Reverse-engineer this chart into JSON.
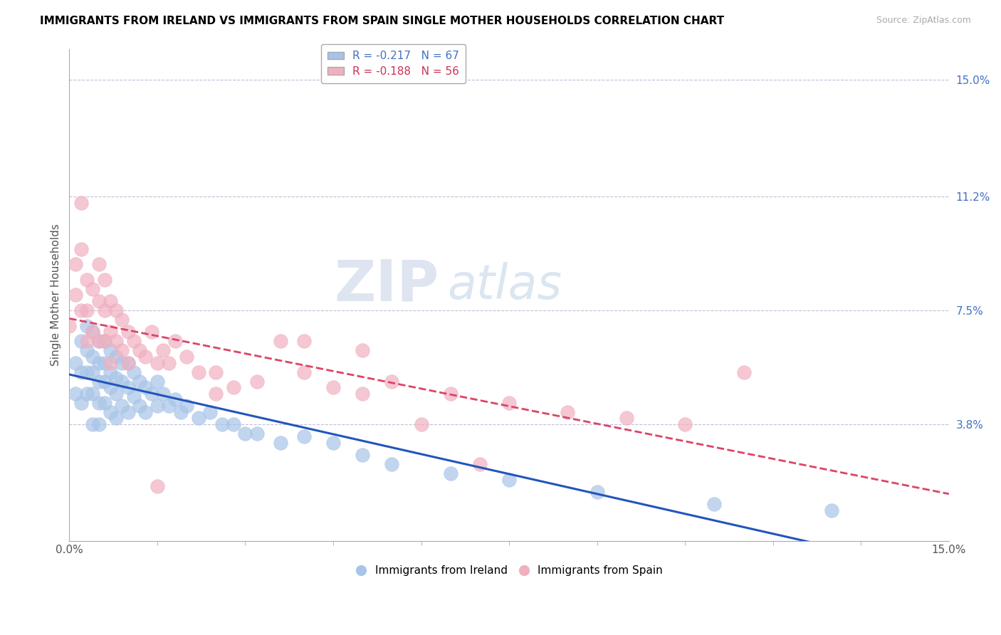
{
  "title": "IMMIGRANTS FROM IRELAND VS IMMIGRANTS FROM SPAIN SINGLE MOTHER HOUSEHOLDS CORRELATION CHART",
  "source": "Source: ZipAtlas.com",
  "ylabel": "Single Mother Households",
  "xlim": [
    0.0,
    0.15
  ],
  "ylim": [
    0.0,
    0.16
  ],
  "x_ticks": [
    0.0,
    0.15
  ],
  "x_tick_labels": [
    "0.0%",
    "15.0%"
  ],
  "y_tick_labels_right": [
    "15.0%",
    "11.2%",
    "7.5%",
    "3.8%"
  ],
  "y_tick_vals_right": [
    0.15,
    0.112,
    0.075,
    0.038
  ],
  "ireland_color": "#a8c4e8",
  "spain_color": "#f0b0c0",
  "ireland_line_color": "#2255bb",
  "spain_line_color": "#dd4466",
  "legend_ireland_label": "R = -0.217   N = 67",
  "legend_spain_label": "R = -0.188   N = 56",
  "legend_bottom_ireland": "Immigrants from Ireland",
  "legend_bottom_spain": "Immigrants from Spain",
  "watermark_zip": "ZIP",
  "watermark_atlas": "atlas",
  "ireland_scatter_x": [
    0.001,
    0.001,
    0.002,
    0.002,
    0.002,
    0.003,
    0.003,
    0.003,
    0.003,
    0.004,
    0.004,
    0.004,
    0.004,
    0.004,
    0.005,
    0.005,
    0.005,
    0.005,
    0.005,
    0.006,
    0.006,
    0.006,
    0.006,
    0.007,
    0.007,
    0.007,
    0.007,
    0.008,
    0.008,
    0.008,
    0.008,
    0.009,
    0.009,
    0.009,
    0.01,
    0.01,
    0.01,
    0.011,
    0.011,
    0.012,
    0.012,
    0.013,
    0.013,
    0.014,
    0.015,
    0.015,
    0.016,
    0.017,
    0.018,
    0.019,
    0.02,
    0.022,
    0.024,
    0.026,
    0.028,
    0.03,
    0.032,
    0.036,
    0.04,
    0.045,
    0.05,
    0.055,
    0.065,
    0.075,
    0.09,
    0.11,
    0.13
  ],
  "ireland_scatter_y": [
    0.058,
    0.048,
    0.065,
    0.055,
    0.045,
    0.07,
    0.062,
    0.055,
    0.048,
    0.068,
    0.06,
    0.055,
    0.048,
    0.038,
    0.065,
    0.058,
    0.052,
    0.045,
    0.038,
    0.065,
    0.058,
    0.052,
    0.045,
    0.062,
    0.055,
    0.05,
    0.042,
    0.06,
    0.053,
    0.048,
    0.04,
    0.058,
    0.052,
    0.044,
    0.058,
    0.05,
    0.042,
    0.055,
    0.047,
    0.052,
    0.044,
    0.05,
    0.042,
    0.048,
    0.052,
    0.044,
    0.048,
    0.044,
    0.046,
    0.042,
    0.044,
    0.04,
    0.042,
    0.038,
    0.038,
    0.035,
    0.035,
    0.032,
    0.034,
    0.032,
    0.028,
    0.025,
    0.022,
    0.02,
    0.016,
    0.012,
    0.01
  ],
  "spain_scatter_x": [
    0.0,
    0.001,
    0.001,
    0.002,
    0.002,
    0.002,
    0.003,
    0.003,
    0.003,
    0.004,
    0.004,
    0.005,
    0.005,
    0.005,
    0.006,
    0.006,
    0.006,
    0.007,
    0.007,
    0.007,
    0.008,
    0.008,
    0.009,
    0.009,
    0.01,
    0.01,
    0.011,
    0.012,
    0.013,
    0.014,
    0.015,
    0.016,
    0.017,
    0.018,
    0.02,
    0.022,
    0.025,
    0.028,
    0.032,
    0.036,
    0.04,
    0.045,
    0.05,
    0.055,
    0.065,
    0.075,
    0.085,
    0.095,
    0.105,
    0.115,
    0.04,
    0.025,
    0.015,
    0.05,
    0.06,
    0.07
  ],
  "spain_scatter_y": [
    0.07,
    0.09,
    0.08,
    0.095,
    0.11,
    0.075,
    0.085,
    0.075,
    0.065,
    0.082,
    0.068,
    0.09,
    0.078,
    0.065,
    0.085,
    0.075,
    0.065,
    0.078,
    0.068,
    0.058,
    0.075,
    0.065,
    0.072,
    0.062,
    0.068,
    0.058,
    0.065,
    0.062,
    0.06,
    0.068,
    0.058,
    0.062,
    0.058,
    0.065,
    0.06,
    0.055,
    0.055,
    0.05,
    0.052,
    0.065,
    0.055,
    0.05,
    0.048,
    0.052,
    0.048,
    0.045,
    0.042,
    0.04,
    0.038,
    0.055,
    0.065,
    0.048,
    0.018,
    0.062,
    0.038,
    0.025
  ]
}
